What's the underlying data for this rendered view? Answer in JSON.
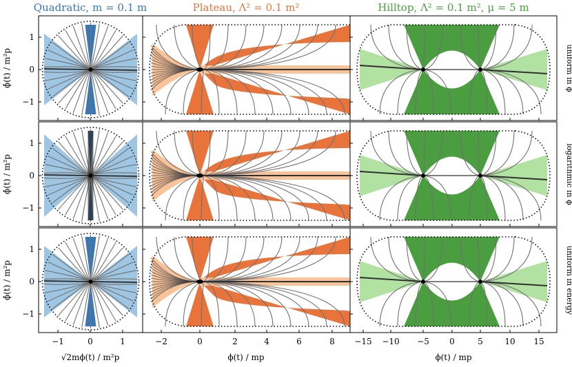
{
  "columns": [
    {
      "title": "Quadratic, m = 0.1 m",
      "title_sub": "p",
      "color": "#3a78b5"
    },
    {
      "title": "Plateau, Λ² = 0.1 m²",
      "title_sub": "p",
      "color": "#e8743b"
    },
    {
      "title": "Hilltop, Λ² = 0.1 m², μ = 5 m",
      "title_sub": "p",
      "color": "#4a9e3f"
    }
  ],
  "row_labels": [
    "uniform in ϕ",
    "logarithmic in ϕ",
    "uniform in energy"
  ],
  "y_axis_label": "ϕ̇(t) / m²p",
  "x_axis_labels": [
    "√2mϕ(t) / m²p",
    "ϕ(t) / mp",
    "ϕ(t) / mp"
  ],
  "y_ticks": [
    "1",
    "0",
    "−1"
  ],
  "x_ticks": [
    [
      "−1",
      "0",
      "1"
    ],
    [
      "−2",
      "0",
      "2",
      "4",
      "6",
      "8"
    ],
    [
      "−15",
      "−10",
      "−5",
      "0",
      "5",
      "10",
      "15"
    ]
  ],
  "colors": {
    "quadratic_dark": "#3a78b5",
    "quadratic_light": "#93c0e0",
    "plateau_dark": "#e8743b",
    "plateau_light": "#f9c39a",
    "hilltop_dark": "#4a9e3f",
    "hilltop_light": "#b2e2a2",
    "trajectory": "#707070"
  },
  "chart_data": [
    {
      "type": "line",
      "panel": "quadratic / uniform in ϕ",
      "xlim": [
        -1.6,
        1.6
      ],
      "ylim": [
        -1.5,
        1.5
      ],
      "xlabel": "√2mϕ(t) / m²p",
      "ylabel": "ϕ̇(t) / m²p"
    },
    {
      "type": "line",
      "panel": "plateau / uniform in ϕ",
      "xlim": [
        -3.3,
        8.9
      ],
      "ylim": [
        -1.5,
        1.5
      ],
      "xlabel": "ϕ(t) / mp"
    },
    {
      "type": "line",
      "panel": "hilltop / uniform in ϕ",
      "xlim": [
        -17,
        17
      ],
      "ylim": [
        -1.5,
        1.5
      ],
      "xlabel": "ϕ(t) / mp"
    },
    {
      "type": "line",
      "panel": "quadratic / logarithmic in ϕ",
      "xlim": [
        -1.6,
        1.6
      ],
      "ylim": [
        -1.5,
        1.5
      ]
    },
    {
      "type": "line",
      "panel": "plateau / logarithmic in ϕ",
      "xlim": [
        -3.3,
        8.9
      ],
      "ylim": [
        -1.5,
        1.5
      ]
    },
    {
      "type": "line",
      "panel": "hilltop / logarithmic in ϕ",
      "xlim": [
        -17,
        17
      ],
      "ylim": [
        -1.5,
        1.5
      ]
    },
    {
      "type": "line",
      "panel": "quadratic / uniform in energy",
      "xlim": [
        -1.6,
        1.6
      ],
      "ylim": [
        -1.5,
        1.5
      ]
    },
    {
      "type": "line",
      "panel": "plateau / uniform in energy",
      "xlim": [
        -3.3,
        8.9
      ],
      "ylim": [
        -1.5,
        1.5
      ]
    },
    {
      "type": "line",
      "panel": "hilltop / uniform in energy",
      "xlim": [
        -17,
        17
      ],
      "ylim": [
        -1.5,
        1.5
      ]
    }
  ]
}
